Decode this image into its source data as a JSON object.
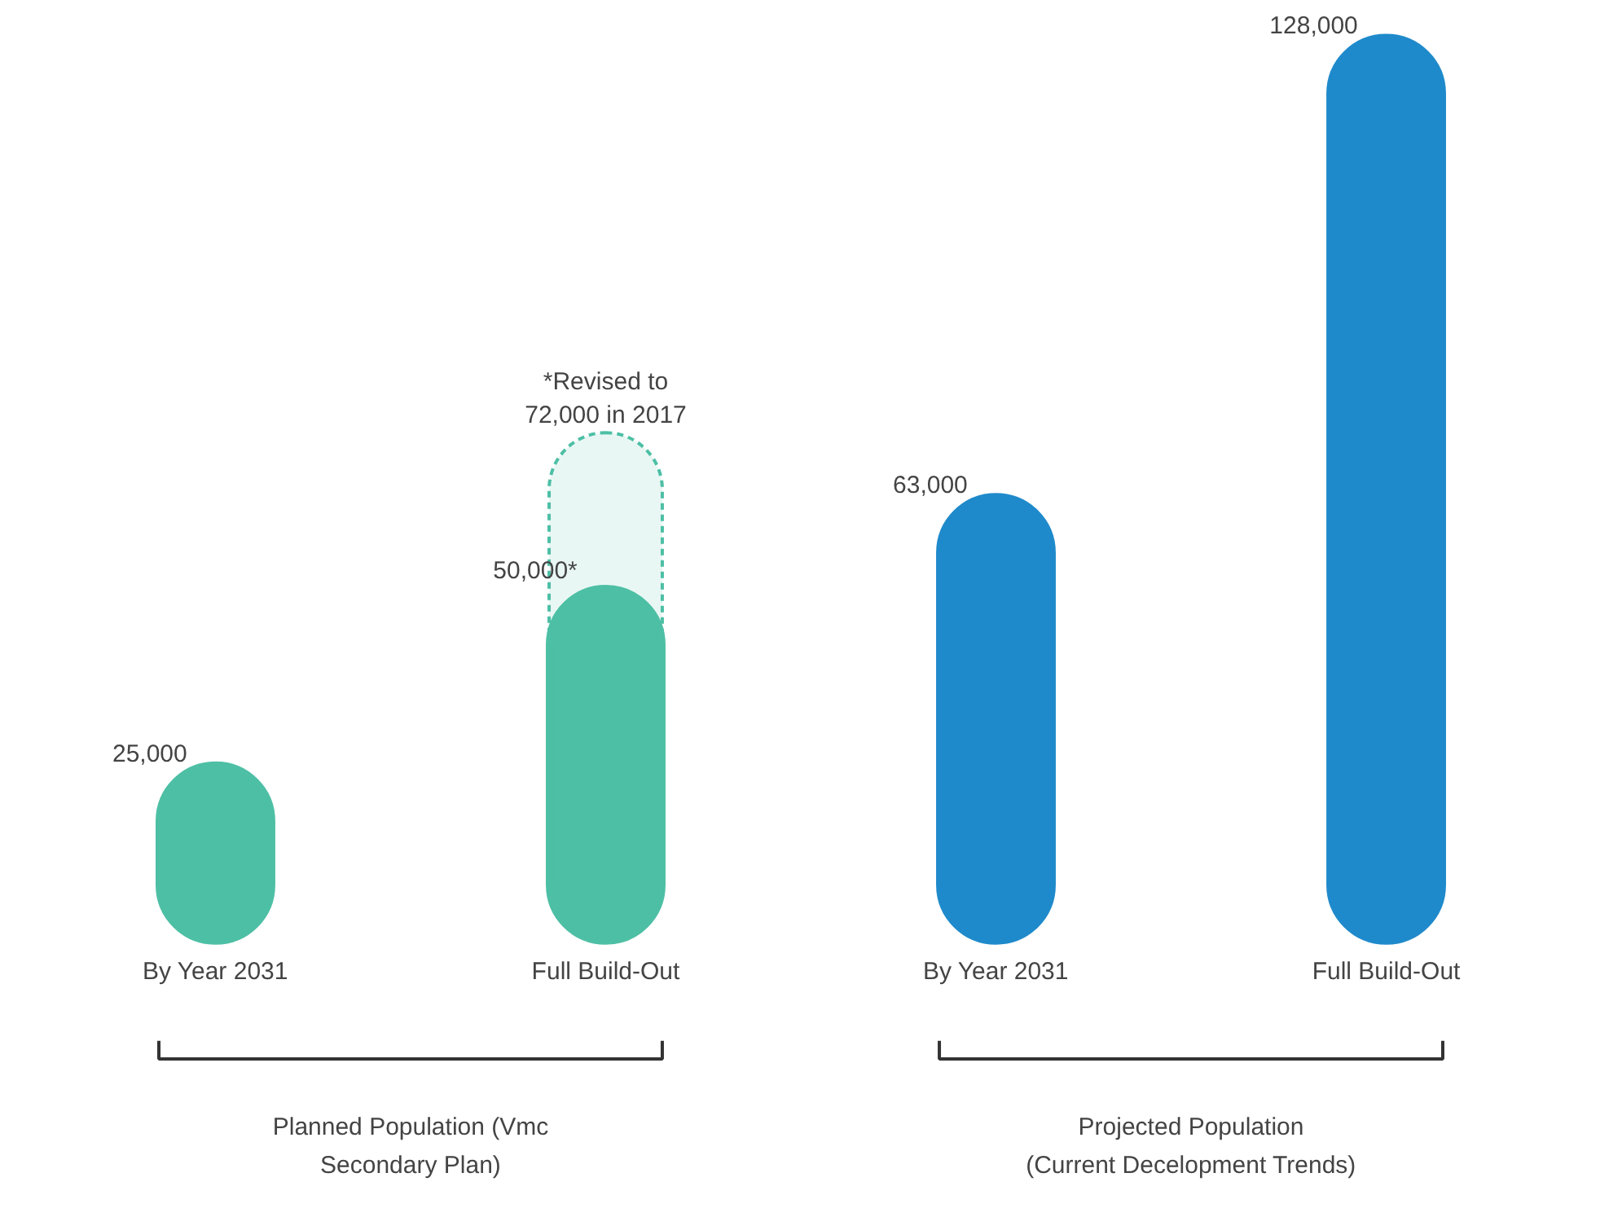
{
  "chart_data": {
    "type": "bar",
    "categories": [
      "By Year 2031",
      "Full Build-Out",
      "By Year 2031",
      "Full Build-Out"
    ],
    "series": [
      {
        "values": [
          25000,
          50000,
          63000,
          128000
        ],
        "colors": [
          "#4dbfa5",
          "#4dbfa5",
          "#1f8acb",
          "#1f8acb"
        ],
        "value_labels": [
          "25,000",
          "50,000*",
          "63,000",
          "128,000"
        ]
      },
      {
        "values": [
          null,
          72000,
          null,
          null
        ],
        "color": "#4dbfa5",
        "line_style": "dashed",
        "value_labels": [
          null,
          "*Revised to\n72,000 in 2017",
          null,
          null
        ]
      }
    ],
    "annotations": [
      "Planned Population (Vmc\nSecondary Plan)",
      "Projected Population\n(Current Decelopment Trends)"
    ],
    "grid": false
  }
}
